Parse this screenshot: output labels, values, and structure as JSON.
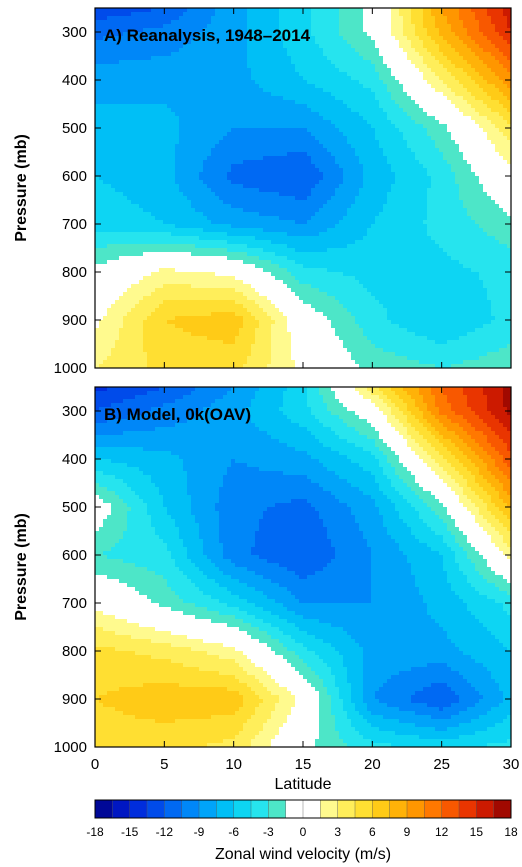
{
  "chart_data": [
    {
      "type": "heatmap",
      "title": "A) Reanalysis, 1948–2014",
      "xlabel": "Latitude",
      "ylabel": "Pressure (mb)",
      "xlim": [
        0,
        30
      ],
      "ylim": [
        1000,
        250
      ],
      "x_ticks": [
        "0",
        "5",
        "10",
        "15",
        "20",
        "25",
        "30"
      ],
      "y_ticks": [
        "300",
        "400",
        "500",
        "600",
        "700",
        "800",
        "900",
        "1000"
      ],
      "latitudes": [
        0,
        5,
        10,
        15,
        20,
        25,
        30
      ],
      "pressures": [
        250,
        300,
        400,
        500,
        600,
        700,
        800,
        900,
        1000
      ],
      "values": [
        [
          -13,
          -12,
          -8,
          -5,
          -1,
          9,
          16
        ],
        [
          -11,
          -10,
          -8,
          -5,
          -1,
          8,
          15
        ],
        [
          -8,
          -8,
          -8,
          -6,
          -4,
          3,
          10
        ],
        [
          -7,
          -7,
          -9,
          -9,
          -6,
          -2,
          4
        ],
        [
          -6,
          -7,
          -11,
          -12,
          -7,
          -4,
          1
        ],
        [
          -5,
          -6,
          -8,
          -9,
          -6,
          -4,
          -2
        ],
        [
          -1,
          2,
          1,
          -4,
          -5,
          -5,
          -4
        ],
        [
          1,
          6,
          7,
          0,
          -4,
          -6,
          -4
        ],
        [
          3,
          5,
          5,
          1,
          -2,
          -3,
          -2
        ]
      ]
    },
    {
      "type": "heatmap",
      "title": "B) Model, 0k(OAV)",
      "xlabel": "Latitude",
      "ylabel": "Pressure (mb)",
      "xlim": [
        0,
        30
      ],
      "ylim": [
        1000,
        250
      ],
      "x_ticks": [
        "0",
        "5",
        "10",
        "15",
        "20",
        "25",
        "30"
      ],
      "y_ticks": [
        "300",
        "400",
        "500",
        "600",
        "700",
        "800",
        "900",
        "1000"
      ],
      "latitudes": [
        0,
        5,
        10,
        15,
        20,
        25,
        30
      ],
      "pressures": [
        250,
        300,
        400,
        500,
        600,
        700,
        800,
        900,
        1000
      ],
      "values": [
        [
          -14,
          -12,
          -9,
          -5,
          4,
          12,
          17
        ],
        [
          -12,
          -10,
          -8,
          -5,
          0,
          11,
          17
        ],
        [
          -6,
          -7,
          -9,
          -8,
          -5,
          4,
          13
        ],
        [
          0,
          -6,
          -10,
          -11,
          -8,
          -2,
          8
        ],
        [
          -3,
          -4,
          -10,
          -12,
          -9,
          -6,
          2
        ],
        [
          1,
          -2,
          -5,
          -9,
          -9,
          -7,
          -4
        ],
        [
          5,
          4,
          2,
          -4,
          -8,
          -8,
          -6
        ],
        [
          6,
          7,
          7,
          1,
          -9,
          -12,
          -7
        ],
        [
          5,
          5,
          4,
          -1,
          -4,
          -5,
          -4
        ]
      ]
    }
  ],
  "colorbar": {
    "label": "Zonal wind velocity (m/s)",
    "ticks": [
      "-18",
      "-15",
      "-12",
      "-9",
      "-6",
      "-3",
      "0",
      "3",
      "6",
      "9",
      "12",
      "15",
      "18"
    ],
    "vmin": -18,
    "vmax": 18,
    "step": 1.5
  }
}
